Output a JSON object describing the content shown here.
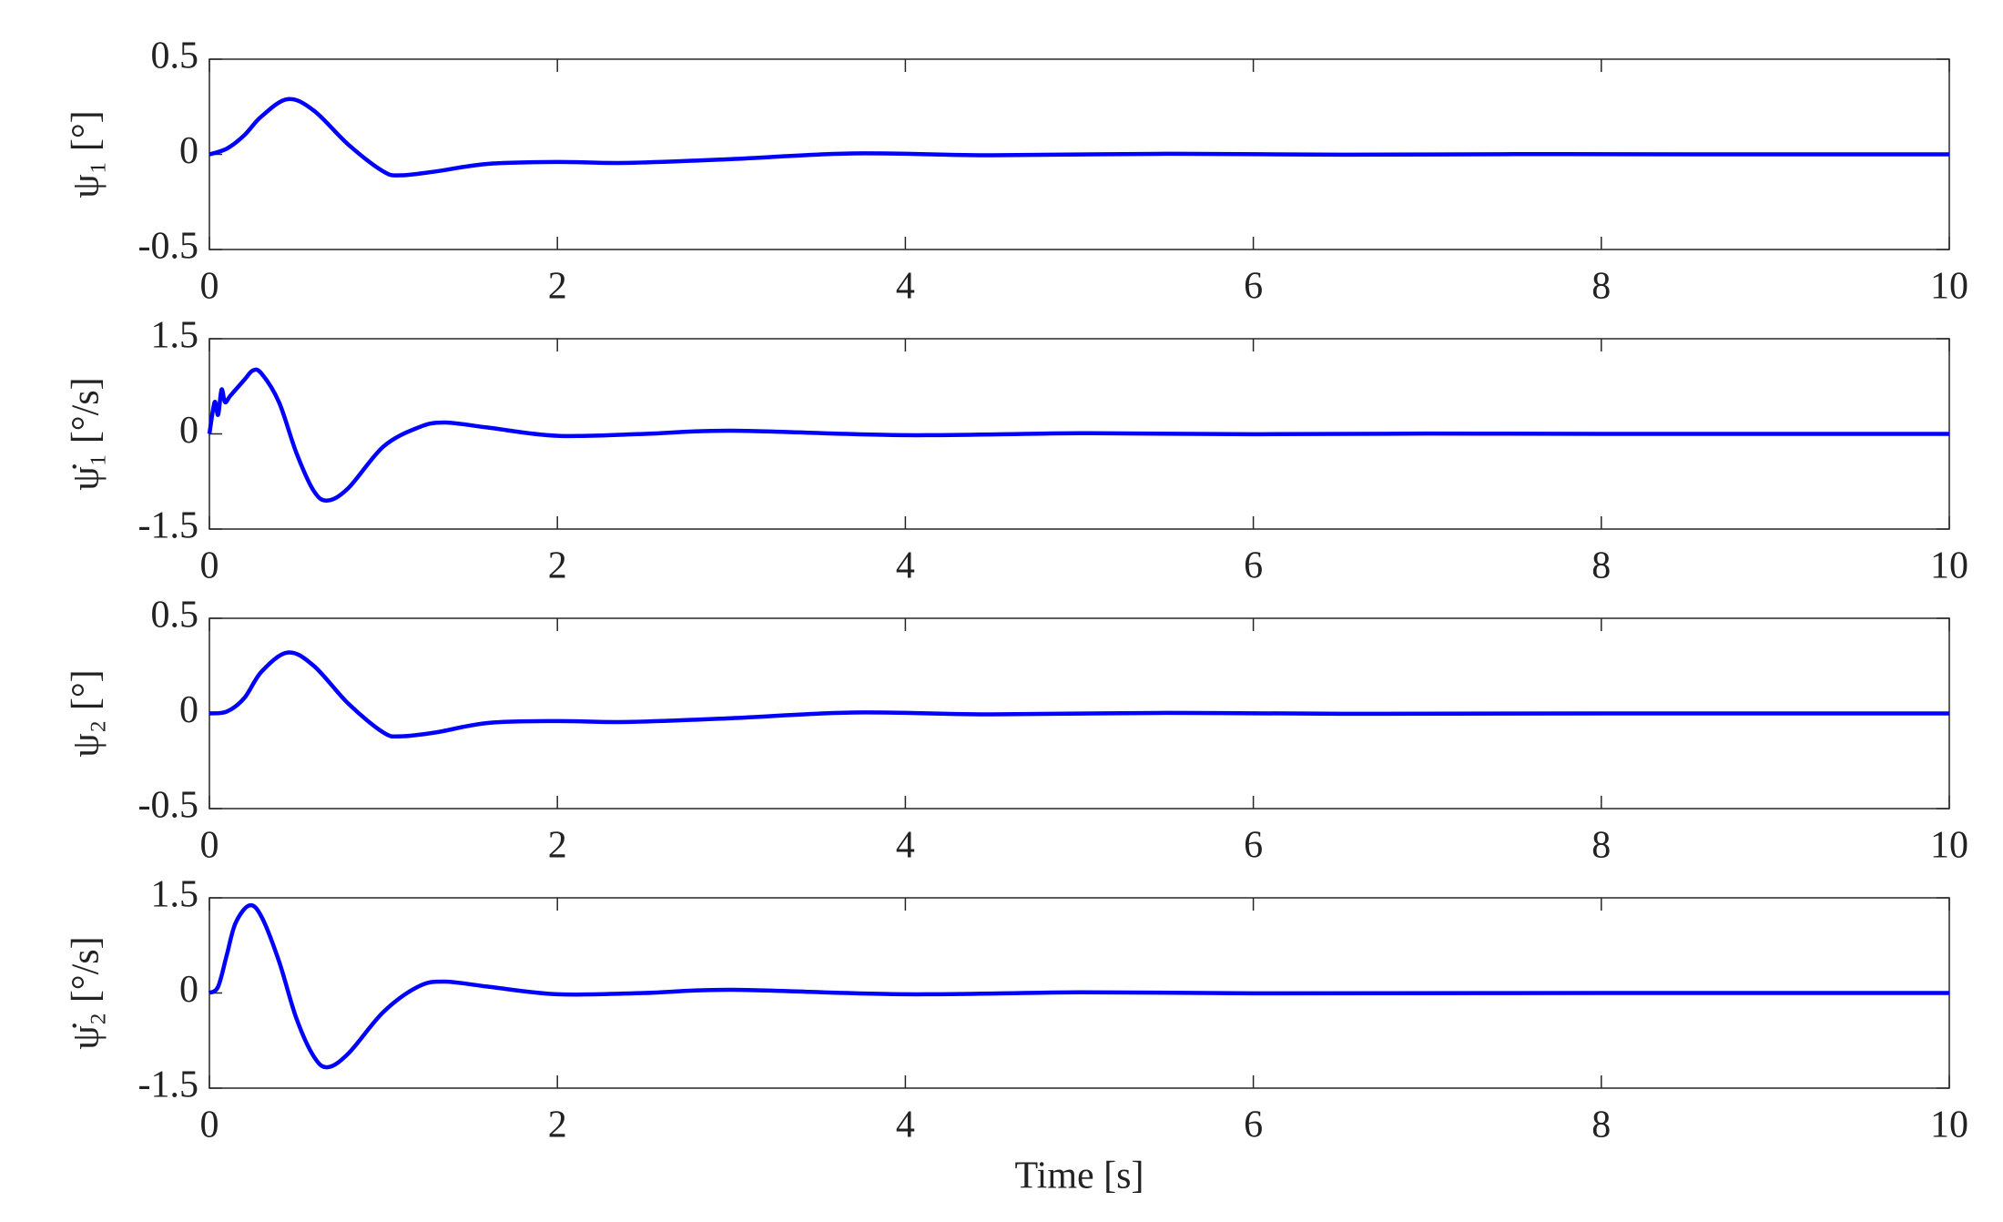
{
  "chart_data": [
    {
      "type": "line",
      "ylabel": "ψ₁ [°]",
      "color": "#0000ff",
      "x": [
        0,
        0.1,
        0.2,
        0.3,
        0.45,
        0.6,
        0.8,
        1.0,
        1.1,
        1.3,
        1.6,
        2.0,
        2.4,
        3.0,
        3.7,
        4.5,
        5.5,
        6.5,
        7.5,
        8.5,
        10
      ],
      "values": [
        0,
        0.03,
        0.1,
        0.2,
        0.29,
        0.23,
        0.05,
        -0.09,
        -0.11,
        -0.09,
        -0.05,
        -0.04,
        -0.045,
        -0.025,
        0.005,
        -0.005,
        0.003,
        -0.002,
        0.001,
        0,
        0
      ],
      "xlim": [
        0,
        10
      ],
      "xticks": [
        0,
        2,
        4,
        6,
        8,
        10
      ],
      "ylim": [
        -0.5,
        0.5
      ],
      "yticks": [
        -0.5,
        0,
        0.5
      ]
    },
    {
      "type": "line",
      "ylabel": "ψ̇₁ [°/s]",
      "color": "#0000ff",
      "x": [
        0,
        0.03,
        0.05,
        0.07,
        0.09,
        0.12,
        0.2,
        0.25,
        0.3,
        0.4,
        0.5,
        0.6,
        0.68,
        0.8,
        1.0,
        1.2,
        1.35,
        1.6,
        2.0,
        2.5,
        3.0,
        4.0,
        5.0,
        6.0,
        7.0,
        8.0,
        10
      ],
      "values": [
        0,
        0.5,
        0.3,
        0.7,
        0.5,
        0.6,
        0.85,
        1.0,
        0.95,
        0.5,
        -0.3,
        -0.9,
        -1.05,
        -0.85,
        -0.2,
        0.1,
        0.18,
        0.1,
        -0.03,
        0,
        0.05,
        -0.02,
        0.01,
        -0.005,
        0.005,
        0,
        0
      ],
      "xlim": [
        0,
        10
      ],
      "xticks": [
        0,
        2,
        4,
        6,
        8,
        10
      ],
      "ylim": [
        -1.5,
        1.5
      ],
      "yticks": [
        -1.5,
        0,
        1.5
      ]
    },
    {
      "type": "line",
      "ylabel": "ψ₂ [°]",
      "color": "#0000ff",
      "x": [
        0,
        0.1,
        0.2,
        0.3,
        0.45,
        0.6,
        0.8,
        1.0,
        1.1,
        1.3,
        1.6,
        2.0,
        2.4,
        3.0,
        3.7,
        4.5,
        5.5,
        6.5,
        8,
        10
      ],
      "values": [
        0,
        0.01,
        0.08,
        0.22,
        0.32,
        0.25,
        0.05,
        -0.1,
        -0.12,
        -0.1,
        -0.05,
        -0.04,
        -0.045,
        -0.025,
        0.005,
        -0.005,
        0.003,
        -0.002,
        0,
        0
      ],
      "xlim": [
        0,
        10
      ],
      "xticks": [
        0,
        2,
        4,
        6,
        8,
        10
      ],
      "ylim": [
        -0.5,
        0.5
      ],
      "yticks": [
        -0.5,
        0,
        0.5
      ]
    },
    {
      "type": "line",
      "ylabel": "ψ̇₂ [°/s]",
      "xlabel": "Time [s]",
      "color": "#0000ff",
      "x": [
        0,
        0.05,
        0.1,
        0.15,
        0.23,
        0.3,
        0.4,
        0.5,
        0.6,
        0.68,
        0.8,
        1.0,
        1.2,
        1.35,
        1.6,
        2.0,
        2.5,
        3.0,
        4.0,
        5.0,
        6.0,
        8.0,
        10
      ],
      "values": [
        0,
        0.1,
        0.6,
        1.1,
        1.38,
        1.2,
        0.5,
        -0.4,
        -1.0,
        -1.17,
        -0.95,
        -0.3,
        0.1,
        0.18,
        0.1,
        -0.02,
        0,
        0.05,
        -0.02,
        0.01,
        -0.005,
        0,
        0
      ],
      "xlim": [
        0,
        10
      ],
      "xticks": [
        0,
        2,
        4,
        6,
        8,
        10
      ],
      "ylim": [
        -1.5,
        1.5
      ],
      "yticks": [
        -1.5,
        0,
        1.5
      ]
    }
  ]
}
